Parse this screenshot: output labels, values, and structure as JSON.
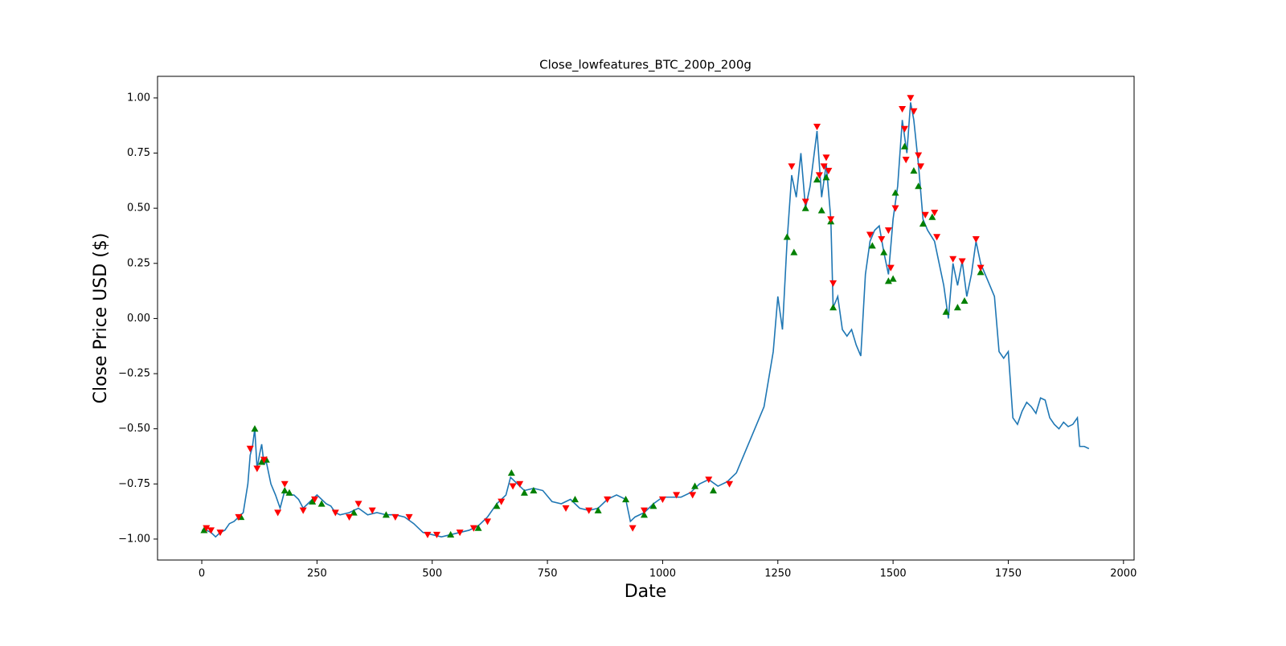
{
  "chart_data": {
    "type": "line",
    "title": "Close_lowfeatures_BTC_200p_200g",
    "x_label": "Date",
    "y_label": "Close Price USD ($)",
    "xlim": [
      -96,
      2023
    ],
    "ylim": [
      -1.095,
      1.098
    ],
    "xticks": [
      0,
      250,
      500,
      750,
      1000,
      1250,
      1500,
      1750,
      2000
    ],
    "yticks": [
      {
        "value": -1,
        "label": "−1.00"
      },
      {
        "value": -0.75,
        "label": "−0.75"
      },
      {
        "value": -0.5,
        "label": "−0.50"
      },
      {
        "value": -0.25,
        "label": "−0.25"
      },
      {
        "value": 0,
        "label": "0.00"
      },
      {
        "value": 0.25,
        "label": "0.25"
      },
      {
        "value": 0.5,
        "label": "0.50"
      },
      {
        "value": 0.75,
        "label": "0.75"
      },
      {
        "value": 1,
        "label": "1.00"
      }
    ],
    "grid": false,
    "series": [
      {
        "color": "#1f77b4",
        "marker": "line",
        "x": [
          0,
          10,
          20,
          30,
          40,
          50,
          60,
          70,
          80,
          90,
          100,
          105,
          110,
          115,
          120,
          125,
          130,
          135,
          140,
          150,
          160,
          170,
          180,
          190,
          200,
          210,
          220,
          230,
          240,
          250,
          260,
          270,
          280,
          290,
          300,
          320,
          340,
          360,
          380,
          400,
          420,
          440,
          460,
          480,
          500,
          520,
          540,
          560,
          580,
          600,
          620,
          640,
          660,
          670,
          680,
          700,
          720,
          740,
          760,
          780,
          800,
          820,
          840,
          860,
          880,
          900,
          920,
          930,
          940,
          960,
          980,
          1000,
          1020,
          1040,
          1060,
          1080,
          1100,
          1120,
          1140,
          1160,
          1180,
          1200,
          1220,
          1240,
          1250,
          1260,
          1270,
          1280,
          1290,
          1300,
          1310,
          1320,
          1335,
          1345,
          1355,
          1365,
          1370,
          1380,
          1390,
          1400,
          1410,
          1420,
          1430,
          1440,
          1450,
          1460,
          1470,
          1480,
          1490,
          1500,
          1510,
          1520,
          1530,
          1538,
          1545,
          1555,
          1565,
          1575,
          1590,
          1600,
          1610,
          1620,
          1630,
          1640,
          1650,
          1660,
          1670,
          1680,
          1690,
          1700,
          1710,
          1720,
          1730,
          1740,
          1750,
          1760,
          1770,
          1780,
          1790,
          1800,
          1810,
          1820,
          1830,
          1840,
          1850,
          1860,
          1870,
          1880,
          1890,
          1900,
          1905,
          1915,
          1925
        ],
        "values": [
          -0.96,
          -0.96,
          -0.97,
          -0.99,
          -0.97,
          -0.96,
          -0.93,
          -0.92,
          -0.9,
          -0.88,
          -0.75,
          -0.62,
          -0.58,
          -0.5,
          -0.68,
          -0.62,
          -0.57,
          -0.66,
          -0.65,
          -0.75,
          -0.8,
          -0.86,
          -0.78,
          -0.8,
          -0.8,
          -0.82,
          -0.86,
          -0.84,
          -0.82,
          -0.8,
          -0.82,
          -0.84,
          -0.85,
          -0.88,
          -0.89,
          -0.88,
          -0.86,
          -0.89,
          -0.88,
          -0.89,
          -0.89,
          -0.9,
          -0.93,
          -0.97,
          -0.98,
          -0.99,
          -0.98,
          -0.97,
          -0.96,
          -0.94,
          -0.9,
          -0.84,
          -0.8,
          -0.72,
          -0.74,
          -0.78,
          -0.77,
          -0.78,
          -0.83,
          -0.84,
          -0.82,
          -0.86,
          -0.87,
          -0.86,
          -0.82,
          -0.8,
          -0.82,
          -0.92,
          -0.9,
          -0.88,
          -0.84,
          -0.81,
          -0.81,
          -0.81,
          -0.79,
          -0.75,
          -0.73,
          -0.76,
          -0.74,
          -0.7,
          -0.6,
          -0.5,
          -0.4,
          -0.15,
          0.1,
          -0.05,
          0.35,
          0.65,
          0.55,
          0.75,
          0.5,
          0.6,
          0.85,
          0.55,
          0.7,
          0.45,
          0.05,
          0.1,
          -0.05,
          -0.08,
          -0.05,
          -0.12,
          -0.17,
          0.2,
          0.35,
          0.4,
          0.42,
          0.3,
          0.2,
          0.45,
          0.6,
          0.9,
          0.75,
          0.98,
          0.9,
          0.7,
          0.45,
          0.4,
          0.35,
          0.25,
          0.15,
          0.0,
          0.25,
          0.15,
          0.26,
          0.1,
          0.2,
          0.35,
          0.25,
          0.2,
          0.15,
          0.1,
          -0.15,
          -0.18,
          -0.15,
          -0.45,
          -0.48,
          -0.42,
          -0.38,
          -0.4,
          -0.43,
          -0.36,
          -0.37,
          -0.45,
          -0.48,
          -0.5,
          -0.47,
          -0.49,
          -0.48,
          -0.45,
          -0.58,
          -0.58,
          -0.59
        ]
      },
      {
        "color": "green",
        "marker": "^",
        "x": [
          5,
          85,
          115,
          130,
          140,
          180,
          190,
          240,
          260,
          330,
          400,
          540,
          600,
          640,
          672,
          700,
          720,
          810,
          860,
          920,
          960,
          980,
          1070,
          1110,
          1270,
          1285,
          1310,
          1335,
          1345,
          1355,
          1365,
          1370,
          1455,
          1480,
          1490,
          1500,
          1505,
          1525,
          1545,
          1555,
          1565,
          1585,
          1615,
          1640,
          1655,
          1690
        ],
        "values": [
          -0.96,
          -0.9,
          -0.5,
          -0.65,
          -0.64,
          -0.78,
          -0.79,
          -0.83,
          -0.84,
          -0.88,
          -0.89,
          -0.98,
          -0.95,
          -0.85,
          -0.7,
          -0.79,
          -0.78,
          -0.82,
          -0.87,
          -0.82,
          -0.89,
          -0.85,
          -0.76,
          -0.78,
          0.37,
          0.3,
          0.5,
          0.63,
          0.49,
          0.64,
          0.44,
          0.05,
          0.33,
          0.3,
          0.17,
          0.18,
          0.57,
          0.78,
          0.67,
          0.6,
          0.43,
          0.46,
          0.03,
          0.05,
          0.08,
          0.21
        ]
      },
      {
        "color": "red",
        "marker": "v",
        "x": [
          10,
          20,
          40,
          80,
          105,
          120,
          135,
          165,
          180,
          220,
          245,
          290,
          320,
          340,
          370,
          420,
          450,
          490,
          510,
          560,
          590,
          620,
          650,
          675,
          690,
          790,
          840,
          880,
          935,
          960,
          1000,
          1030,
          1065,
          1100,
          1145,
          1280,
          1310,
          1335,
          1340,
          1350,
          1355,
          1360,
          1365,
          1370,
          1450,
          1475,
          1490,
          1495,
          1505,
          1520,
          1525,
          1528,
          1538,
          1545,
          1555,
          1560,
          1570,
          1590,
          1595,
          1630,
          1650,
          1680,
          1690
        ],
        "values": [
          -0.95,
          -0.96,
          -0.97,
          -0.9,
          -0.59,
          -0.68,
          -0.64,
          -0.88,
          -0.75,
          -0.87,
          -0.82,
          -0.88,
          -0.9,
          -0.84,
          -0.87,
          -0.9,
          -0.9,
          -0.98,
          -0.98,
          -0.97,
          -0.95,
          -0.92,
          -0.83,
          -0.76,
          -0.75,
          -0.86,
          -0.87,
          -0.82,
          -0.95,
          -0.87,
          -0.82,
          -0.8,
          -0.8,
          -0.73,
          -0.75,
          0.69,
          0.53,
          0.87,
          0.65,
          0.69,
          0.73,
          0.67,
          0.45,
          0.16,
          0.38,
          0.36,
          0.4,
          0.23,
          0.5,
          0.95,
          0.86,
          0.72,
          1.0,
          0.94,
          0.74,
          0.69,
          0.47,
          0.48,
          0.37,
          0.27,
          0.26,
          0.36,
          0.23
        ]
      }
    ]
  }
}
